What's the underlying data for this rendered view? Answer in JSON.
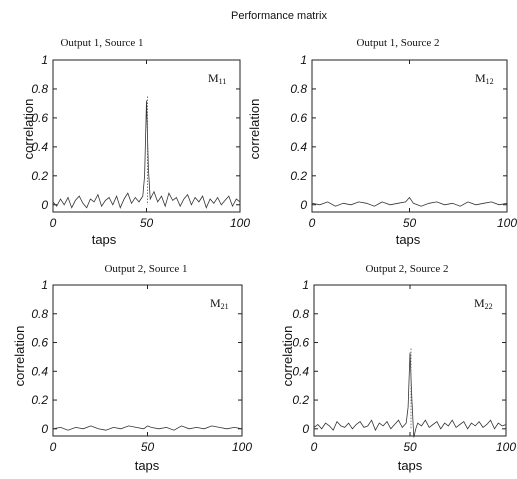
{
  "figure_title": "Performance matrix",
  "chart_data": [
    {
      "type": "line",
      "title": "Output 1, Source 1",
      "annotation": {
        "main": "M",
        "sub": "11"
      },
      "xlabel": "taps",
      "ylabel": "correlation",
      "xlim": [
        0,
        100
      ],
      "ylim": [
        -0.05,
        1
      ],
      "xticks": [
        "0",
        "50",
        "100"
      ],
      "yticks": [
        "0",
        "0.2",
        "0.4",
        "0.6",
        "0.8",
        "1"
      ],
      "peak": {
        "x": 50,
        "y": 0.72
      },
      "series": [
        {
          "x": [
            0,
            2,
            4,
            6,
            8,
            10,
            12,
            14,
            16,
            18,
            20,
            22,
            24,
            26,
            28,
            30,
            32,
            34,
            36,
            38,
            40,
            42,
            44,
            46,
            48,
            49,
            50,
            51,
            52,
            54,
            56,
            58,
            60,
            62,
            64,
            66,
            68,
            70,
            72,
            74,
            76,
            78,
            80,
            82,
            84,
            86,
            88,
            90,
            92,
            94,
            96,
            98,
            100
          ],
          "values": [
            0.02,
            -0.01,
            0.04,
            0.0,
            0.05,
            -0.02,
            0.03,
            0.06,
            0.01,
            -0.02,
            0.04,
            0.02,
            0.07,
            -0.01,
            0.03,
            0.05,
            0.0,
            0.06,
            -0.02,
            0.04,
            0.08,
            0.01,
            0.05,
            0.02,
            0.06,
            0.2,
            0.72,
            0.25,
            0.04,
            0.09,
            0.02,
            0.06,
            -0.01,
            0.08,
            0.03,
            0.05,
            -0.01,
            0.04,
            0.07,
            0.0,
            0.05,
            0.02,
            0.06,
            -0.02,
            0.04,
            0.01,
            0.05,
            0.0,
            0.03,
            0.06,
            -0.01,
            0.04,
            0.02
          ]
        }
      ]
    },
    {
      "type": "line",
      "title": "Output 1, Source 2",
      "annotation": {
        "main": "M",
        "sub": "12"
      },
      "xlabel": "taps",
      "ylabel": "correlation",
      "xlim": [
        0,
        100
      ],
      "ylim": [
        -0.05,
        1
      ],
      "xticks": [
        "0",
        "50",
        "100"
      ],
      "yticks": [
        "0",
        "0.2",
        "0.4",
        "0.6",
        "0.8",
        "1"
      ],
      "series": [
        {
          "x": [
            0,
            4,
            8,
            12,
            16,
            20,
            24,
            28,
            32,
            36,
            40,
            44,
            48,
            50,
            52,
            56,
            60,
            64,
            68,
            72,
            76,
            80,
            84,
            88,
            92,
            96,
            100
          ],
          "values": [
            0.01,
            0.0,
            0.02,
            -0.01,
            0.01,
            0.0,
            0.02,
            0.01,
            -0.01,
            0.02,
            0.0,
            0.01,
            0.02,
            0.05,
            0.01,
            -0.01,
            0.01,
            0.02,
            0.0,
            0.01,
            -0.01,
            0.02,
            0.0,
            0.01,
            0.02,
            0.0,
            0.01
          ]
        }
      ]
    },
    {
      "type": "line",
      "title": "Output 2, Source 1",
      "annotation": {
        "main": "M",
        "sub": "21"
      },
      "xlabel": "taps",
      "ylabel": "correlation",
      "xlim": [
        0,
        100
      ],
      "ylim": [
        -0.05,
        1
      ],
      "xticks": [
        "0",
        "50",
        "100"
      ],
      "yticks": [
        "0",
        "0.2",
        "0.4",
        "0.6",
        "0.8",
        "1"
      ],
      "series": [
        {
          "x": [
            0,
            4,
            8,
            12,
            16,
            20,
            24,
            28,
            32,
            36,
            40,
            44,
            48,
            50,
            52,
            56,
            60,
            64,
            68,
            72,
            76,
            80,
            84,
            88,
            92,
            96,
            100
          ],
          "values": [
            0.0,
            0.01,
            -0.01,
            0.01,
            0.0,
            0.02,
            0.0,
            -0.01,
            0.01,
            0.0,
            0.02,
            0.01,
            0.0,
            0.02,
            0.01,
            0.0,
            0.01,
            -0.01,
            0.02,
            0.0,
            0.01,
            0.0,
            0.02,
            0.01,
            0.0,
            0.01,
            0.0
          ]
        }
      ]
    },
    {
      "type": "line",
      "title": "Output 2, Source 2",
      "annotation": {
        "main": "M",
        "sub": "22"
      },
      "xlabel": "taps",
      "ylabel": "correlation",
      "xlim": [
        0,
        100
      ],
      "ylim": [
        -0.05,
        1
      ],
      "xticks": [
        "0",
        "50",
        "100"
      ],
      "yticks": [
        "0",
        "0.2",
        "0.4",
        "0.6",
        "0.8",
        "1"
      ],
      "peak": {
        "x": 50,
        "y": 0.53
      },
      "series": [
        {
          "x": [
            0,
            2,
            4,
            6,
            8,
            10,
            12,
            14,
            16,
            18,
            20,
            22,
            24,
            26,
            28,
            30,
            32,
            34,
            36,
            38,
            40,
            42,
            44,
            46,
            48,
            49,
            50,
            51,
            52,
            53,
            54,
            56,
            58,
            60,
            62,
            64,
            66,
            68,
            70,
            72,
            74,
            76,
            78,
            80,
            82,
            84,
            86,
            88,
            90,
            92,
            94,
            96,
            98,
            100
          ],
          "values": [
            0.01,
            0.03,
            0.0,
            0.04,
            0.02,
            -0.01,
            0.05,
            0.02,
            0.01,
            0.04,
            0.0,
            0.03,
            0.05,
            0.01,
            0.02,
            0.06,
            -0.01,
            0.04,
            0.02,
            0.05,
            0.0,
            0.03,
            0.06,
            0.01,
            0.04,
            0.15,
            0.53,
            0.2,
            -0.06,
            0.0,
            0.04,
            0.02,
            0.06,
            0.01,
            0.03,
            0.05,
            0.0,
            0.04,
            0.02,
            0.06,
            0.01,
            0.03,
            0.05,
            0.0,
            0.04,
            0.02,
            0.05,
            0.01,
            0.03,
            0.06,
            0.0,
            0.04,
            0.02,
            0.03
          ]
        }
      ]
    }
  ]
}
